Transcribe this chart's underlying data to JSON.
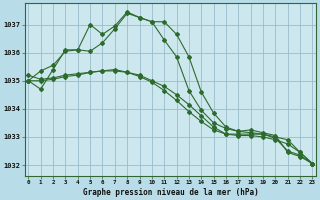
{
  "title": "Graphe pression niveau de la mer (hPa)",
  "background_color": "#b8dde8",
  "plot_background": "#cce8ee",
  "grid_color": "#99bbcc",
  "line_color": "#2d6a2d",
  "hours": [
    0,
    1,
    2,
    3,
    4,
    5,
    6,
    7,
    8,
    9,
    10,
    11,
    12,
    13,
    14,
    15,
    16,
    17,
    18,
    19,
    20,
    21,
    22,
    23
  ],
  "series": [
    [
      1035.0,
      1034.7,
      1035.4,
      1036.1,
      1036.1,
      1037.0,
      1036.65,
      1036.95,
      1037.45,
      1037.25,
      1037.1,
      1037.1,
      1036.65,
      1035.85,
      1034.6,
      1033.85,
      1033.35,
      1033.2,
      1033.25,
      1033.15,
      1033.05,
      1032.45,
      1032.3,
      1032.05
    ],
    [
      1035.0,
      1035.35,
      1035.55,
      1036.05,
      1036.1,
      1036.05,
      1036.35,
      1036.85,
      1037.4,
      1037.25,
      1037.1,
      1036.45,
      1035.85,
      1034.65,
      1033.95,
      1033.5,
      1033.3,
      1033.2,
      1033.15,
      1033.1,
      1032.95,
      1032.5,
      1032.35,
      1032.05
    ],
    [
      1035.0,
      1035.0,
      1035.05,
      1035.15,
      1035.2,
      1035.3,
      1035.35,
      1035.35,
      1035.3,
      1035.15,
      1034.95,
      1034.65,
      1034.3,
      1033.9,
      1033.55,
      1033.25,
      1033.1,
      1033.1,
      1033.1,
      1033.1,
      1033.0,
      1032.9,
      1032.45,
      1032.05
    ],
    [
      1035.2,
      1035.05,
      1035.1,
      1035.2,
      1035.25,
      1035.3,
      1035.35,
      1035.4,
      1035.3,
      1035.2,
      1035.0,
      1034.8,
      1034.5,
      1034.15,
      1033.75,
      1033.35,
      1033.1,
      1033.05,
      1033.05,
      1033.0,
      1032.9,
      1032.75,
      1032.45,
      1032.05
    ]
  ],
  "yticks": [
    1032,
    1033,
    1034,
    1035,
    1036,
    1037
  ],
  "ylim": [
    1031.6,
    1037.75
  ],
  "xlim": [
    -0.3,
    23.3
  ]
}
